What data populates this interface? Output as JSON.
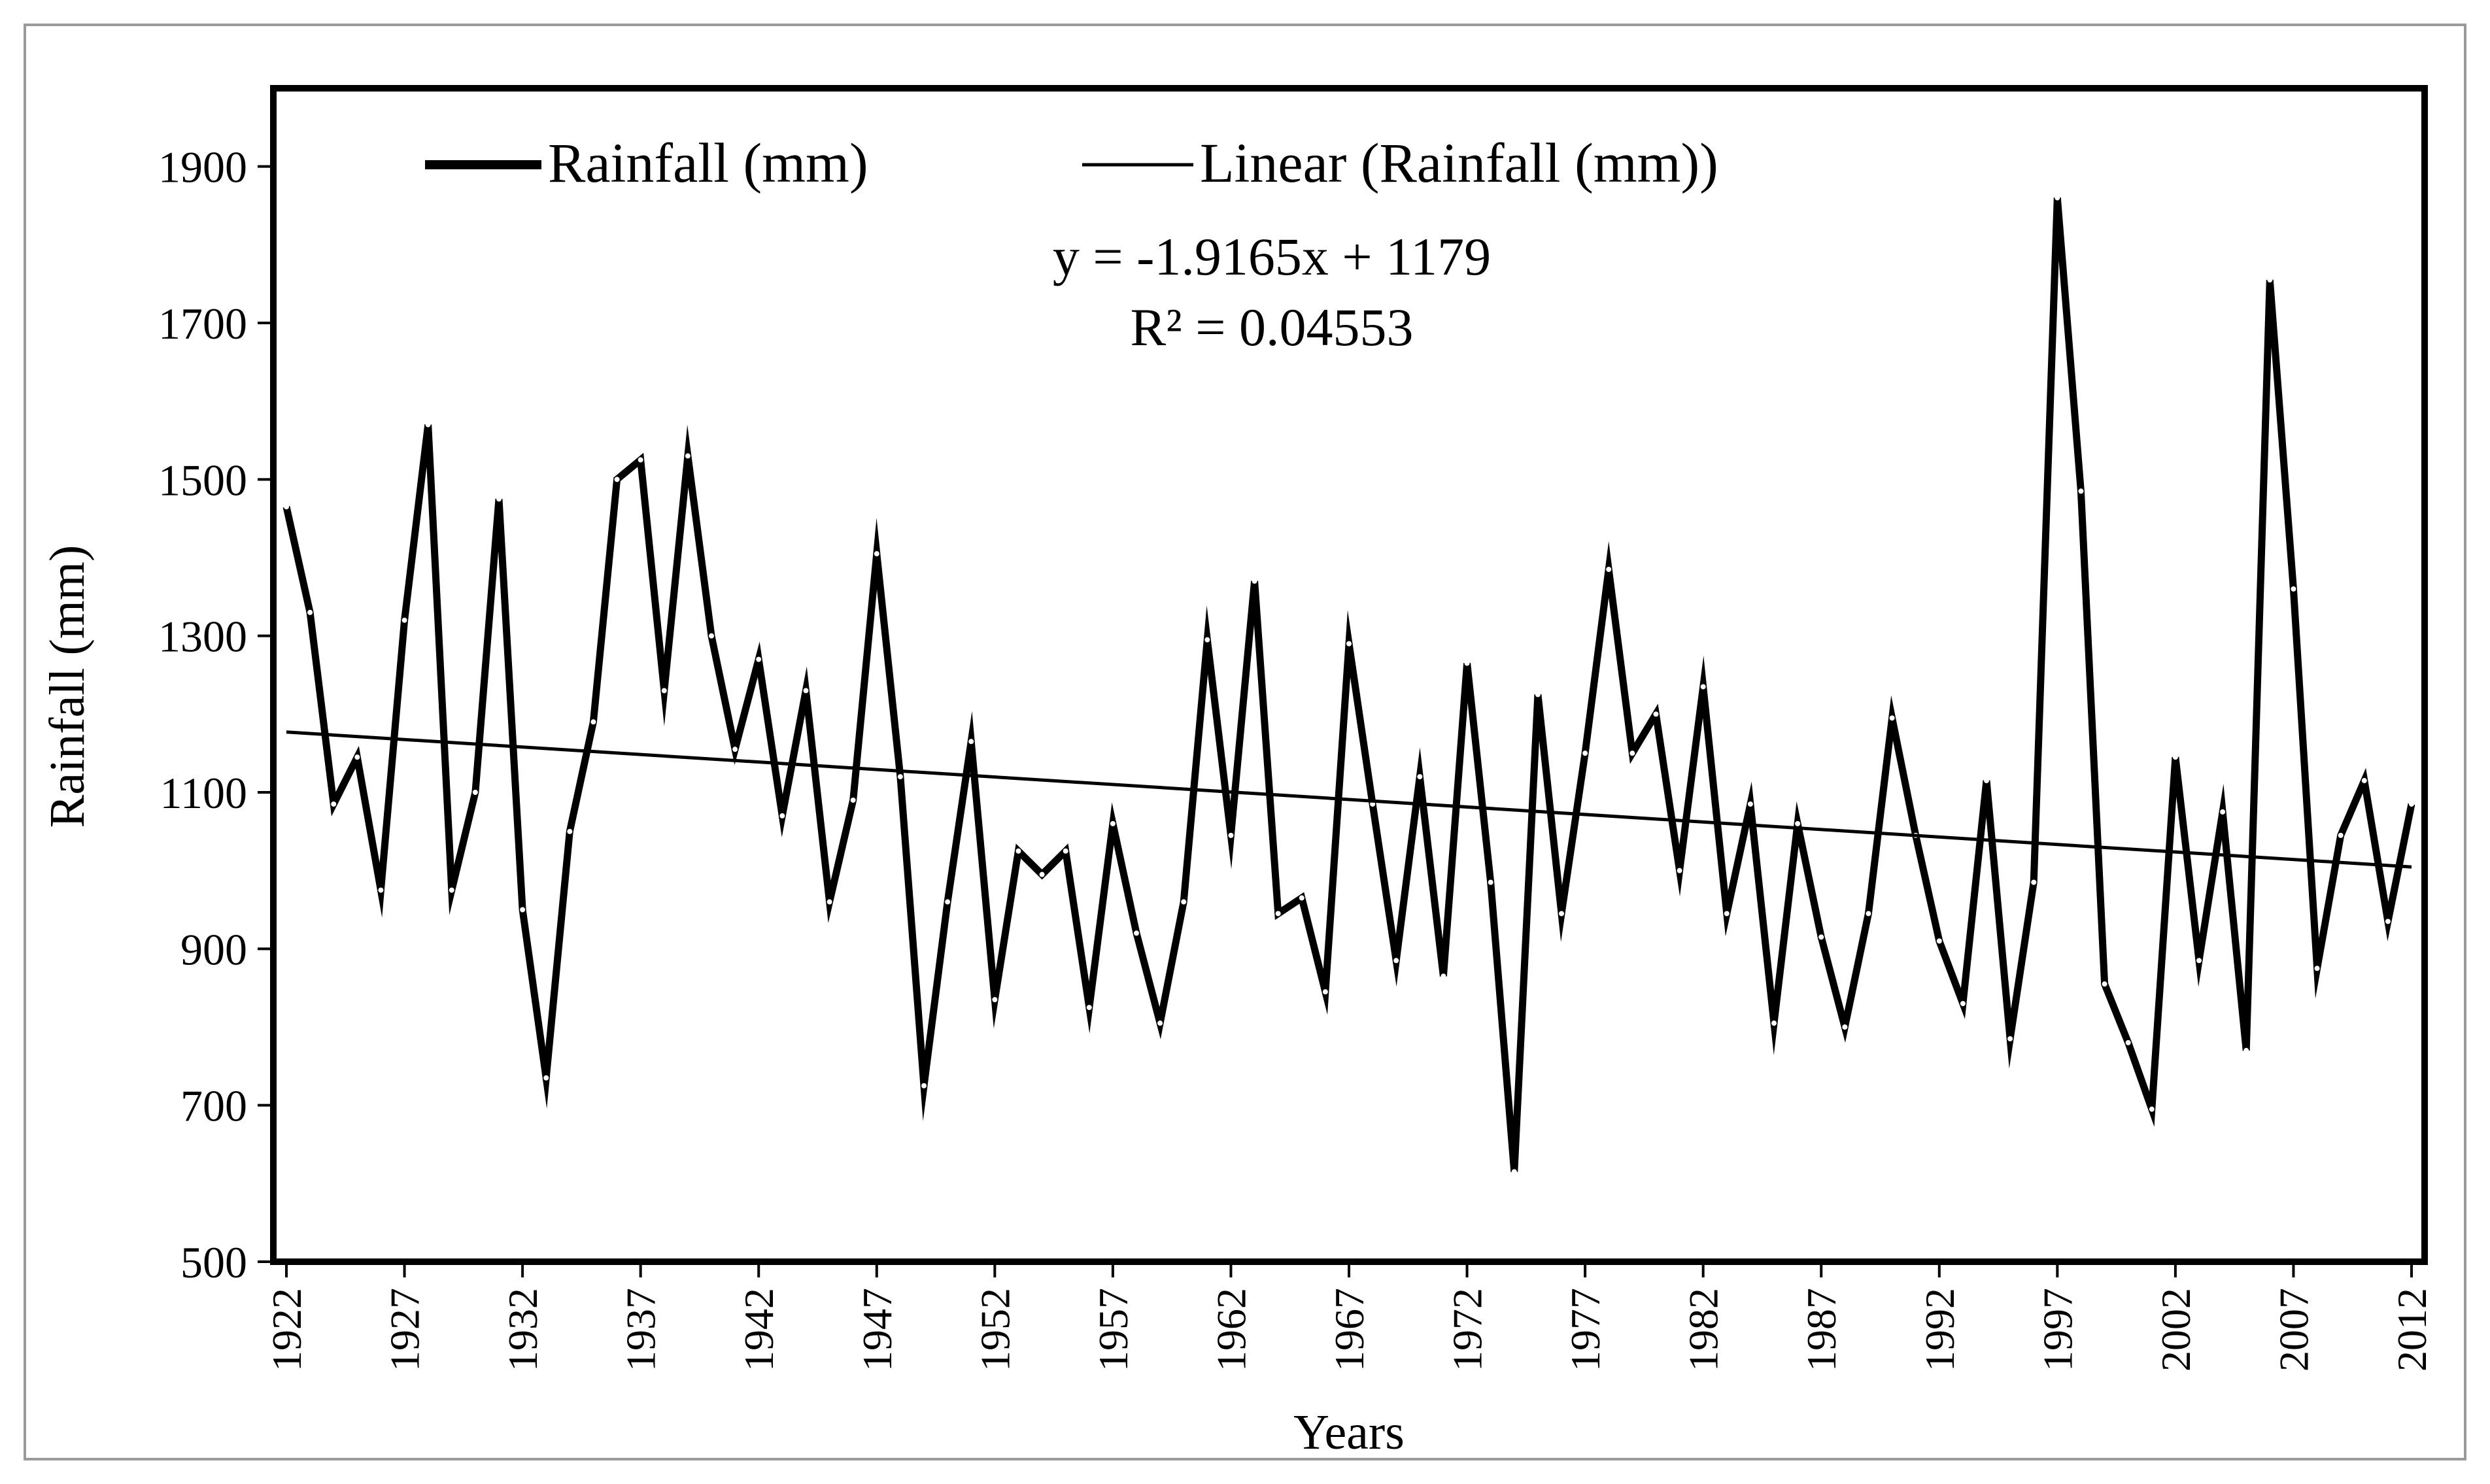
{
  "chart_data": {
    "type": "line",
    "title": "",
    "xlabel": "Years",
    "ylabel": "Rainfall (mm)",
    "xlim": [
      1922,
      2012
    ],
    "ylim": [
      500,
      2000
    ],
    "y_ticks": [
      500,
      700,
      900,
      1100,
      1300,
      1500,
      1700,
      1900
    ],
    "x_ticks": [
      1922,
      1927,
      1932,
      1937,
      1942,
      1947,
      1952,
      1957,
      1962,
      1967,
      1972,
      1977,
      1982,
      1987,
      1992,
      1997,
      2002,
      2007,
      2012
    ],
    "grid": false,
    "legend_position": "top",
    "series": [
      {
        "name": "Rainfall (mm)",
        "x": [
          1922,
          1923,
          1924,
          1925,
          1926,
          1927,
          1928,
          1929,
          1930,
          1931,
          1932,
          1933,
          1934,
          1935,
          1936,
          1937,
          1938,
          1939,
          1940,
          1941,
          1942,
          1943,
          1944,
          1945,
          1946,
          1947,
          1948,
          1949,
          1950,
          1951,
          1952,
          1953,
          1954,
          1955,
          1956,
          1957,
          1958,
          1959,
          1960,
          1961,
          1962,
          1963,
          1964,
          1965,
          1966,
          1967,
          1968,
          1969,
          1970,
          1971,
          1972,
          1973,
          1974,
          1975,
          1976,
          1977,
          1978,
          1979,
          1980,
          1981,
          1982,
          1983,
          1984,
          1985,
          1986,
          1987,
          1988,
          1989,
          1990,
          1991,
          1992,
          1993,
          1994,
          1995,
          1996,
          1997,
          1998,
          1999,
          2000,
          2001,
          2002,
          2003,
          2004,
          2005,
          2006,
          2007,
          2008,
          2009,
          2010,
          2011,
          2012
        ],
        "values": [
          1465,
          1330,
          1085,
          1145,
          975,
          1320,
          1570,
          975,
          1100,
          1475,
          950,
          735,
          1050,
          1190,
          1500,
          1525,
          1230,
          1530,
          1300,
          1155,
          1270,
          1070,
          1230,
          960,
          1090,
          1405,
          1120,
          725,
          960,
          1165,
          835,
          1025,
          995,
          1025,
          825,
          1060,
          920,
          805,
          960,
          1295,
          1045,
          1370,
          945,
          965,
          845,
          1290,
          1085,
          885,
          1120,
          865,
          1265,
          985,
          615,
          1225,
          945,
          1150,
          1385,
          1150,
          1200,
          1000,
          1235,
          945,
          1085,
          805,
          1060,
          915,
          800,
          945,
          1195,
          1045,
          910,
          830,
          1115,
          785,
          985,
          1860,
          1485,
          855,
          780,
          695,
          1145,
          885,
          1075,
          770,
          1755,
          1360,
          875,
          1045,
          1115,
          935,
          1085
        ]
      },
      {
        "name": "Linear (Rainfall (mm))",
        "type": "trendline",
        "slope": -1.9165,
        "intercept": 1179,
        "x_start": 1922,
        "x_end": 2012
      }
    ],
    "annotations": {
      "equation": "y = -1.9165x + 1179",
      "r_squared": "R² = 0.04553"
    }
  }
}
